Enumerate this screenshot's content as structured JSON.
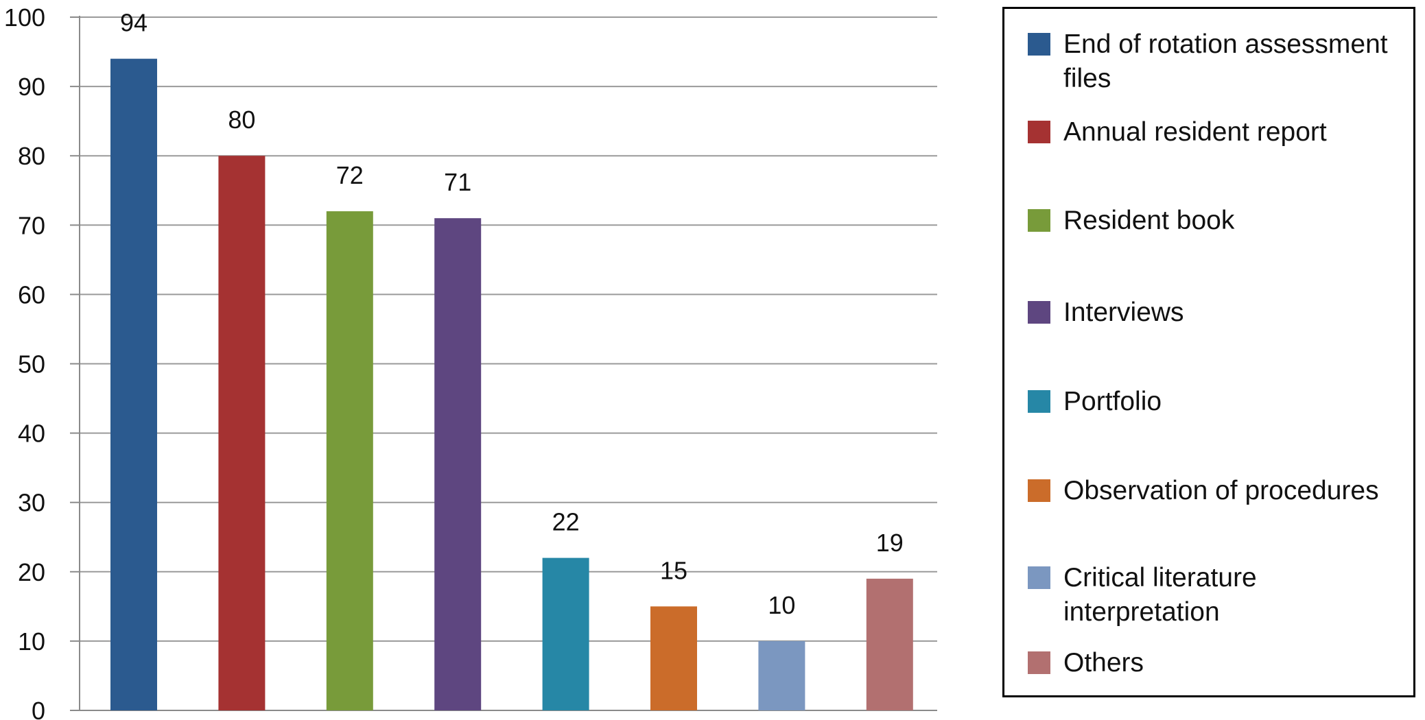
{
  "chart_data": {
    "type": "bar",
    "title": "",
    "xlabel": "",
    "ylabel": "",
    "ylim": [
      0,
      100
    ],
    "yticks": [
      0,
      10,
      20,
      30,
      40,
      50,
      60,
      70,
      80,
      90,
      100
    ],
    "grid": true,
    "legend_position": "right",
    "categories": [
      "End of rotation assessment files",
      "Annual resident report",
      "Resident book",
      "Interviews",
      "Portfolio",
      "Observation of procedures",
      "Critical literature interpretation",
      "Others"
    ],
    "values": [
      94,
      80,
      72,
      71,
      22,
      15,
      10,
      19
    ],
    "data_labels": [
      "94",
      "80",
      "72",
      "71",
      "22",
      "15",
      "10",
      "19"
    ],
    "colors": [
      "#2B5A8F",
      "#A53232",
      "#789B3A",
      "#5E4680",
      "#2687A6",
      "#CB6C2A",
      "#7B97C0",
      "#B27070"
    ],
    "legend": [
      {
        "lines": [
          "End of rotation assessment",
          "files"
        ],
        "color": "#2B5A8F"
      },
      {
        "lines": [
          "Annual resident report"
        ],
        "color": "#A53232"
      },
      {
        "lines": [
          "Resident book"
        ],
        "color": "#789B3A"
      },
      {
        "lines": [
          "Interviews"
        ],
        "color": "#5E4680"
      },
      {
        "lines": [
          "Portfolio"
        ],
        "color": "#2687A6"
      },
      {
        "lines": [
          "Observation of procedures"
        ],
        "color": "#CB6C2A"
      },
      {
        "lines": [
          "Critical literature",
          "interpretation"
        ],
        "color": "#7B97C0"
      },
      {
        "lines": [
          "Others"
        ],
        "color": "#B27070"
      }
    ]
  }
}
